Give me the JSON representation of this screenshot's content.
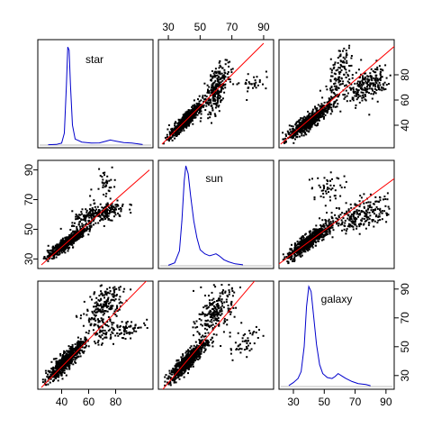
{
  "chart_data": {
    "type": "scatter",
    "subtype": "scatterplot-matrix",
    "variables": [
      "star",
      "sun",
      "galaxy"
    ],
    "diagonal": "density curve",
    "density_color": "#0000cc",
    "fit_line_color": "#ff0000",
    "point_color": "#000000",
    "axes": {
      "star": {
        "ticks": [
          40,
          60,
          80
        ],
        "range": [
          25,
          105
        ]
      },
      "sun": {
        "ticks": [
          30,
          50,
          70,
          90
        ],
        "range": [
          26,
          94
        ]
      },
      "galaxy": {
        "ticks": [
          30,
          50,
          70,
          90
        ],
        "range": [
          23,
          93
        ]
      }
    },
    "density": {
      "star": [
        [
          30,
          0.004
        ],
        [
          36,
          0.006
        ],
        [
          40,
          0.02
        ],
        [
          42,
          0.12
        ],
        [
          43.5,
          0.6
        ],
        [
          44.5,
          0.98
        ],
        [
          45.5,
          0.95
        ],
        [
          46.5,
          0.6
        ],
        [
          48,
          0.2
        ],
        [
          50,
          0.06
        ],
        [
          55,
          0.03
        ],
        [
          62,
          0.02
        ],
        [
          68,
          0.022
        ],
        [
          73,
          0.04
        ],
        [
          76,
          0.05
        ],
        [
          80,
          0.04
        ],
        [
          86,
          0.024
        ],
        [
          92,
          0.02
        ],
        [
          97,
          0.012
        ],
        [
          100,
          0.005
        ]
      ],
      "sun": [
        [
          30,
          0.005
        ],
        [
          34,
          0.03
        ],
        [
          37,
          0.15
        ],
        [
          38.5,
          0.45
        ],
        [
          40,
          0.85
        ],
        [
          41,
          1.0
        ],
        [
          42.5,
          0.92
        ],
        [
          44,
          0.7
        ],
        [
          46,
          0.45
        ],
        [
          48,
          0.28
        ],
        [
          50,
          0.16
        ],
        [
          53,
          0.12
        ],
        [
          56,
          0.1
        ],
        [
          58,
          0.11
        ],
        [
          60,
          0.12
        ],
        [
          62,
          0.1
        ],
        [
          65,
          0.06
        ],
        [
          68,
          0.04
        ],
        [
          72,
          0.02
        ],
        [
          77,
          0.01
        ]
      ],
      "galaxy": [
        [
          27,
          0.01
        ],
        [
          30,
          0.04
        ],
        [
          33,
          0.08
        ],
        [
          35,
          0.15
        ],
        [
          37,
          0.4
        ],
        [
          38.5,
          0.8
        ],
        [
          40,
          1.0
        ],
        [
          41.5,
          0.95
        ],
        [
          43,
          0.72
        ],
        [
          45,
          0.42
        ],
        [
          47,
          0.22
        ],
        [
          49,
          0.13
        ],
        [
          52,
          0.09
        ],
        [
          55,
          0.08
        ],
        [
          57,
          0.1
        ],
        [
          59,
          0.13
        ],
        [
          61,
          0.11
        ],
        [
          64,
          0.08
        ],
        [
          68,
          0.05
        ],
        [
          72,
          0.03
        ],
        [
          77,
          0.02
        ],
        [
          80,
          0.008
        ]
      ]
    },
    "scatter": {
      "star_vs_sun": {
        "clusters": [
          {
            "cx": 44,
            "cy": 41,
            "sx": 7,
            "sy": 5,
            "rho": 0.92,
            "n": 700
          },
          {
            "cx": 68,
            "cy": 60,
            "sx": 10,
            "sy": 4,
            "rho": 0.6,
            "n": 260
          },
          {
            "cx": 72,
            "cy": 82,
            "sx": 4,
            "sy": 5,
            "rho": 0.3,
            "n": 35
          }
        ],
        "fit": {
          "intercept": 6,
          "slope": 0.8
        }
      },
      "star_vs_galaxy": {
        "clusters": [
          {
            "cx": 43,
            "cy": 40,
            "sx": 7,
            "sy": 7,
            "rho": 0.9,
            "n": 650
          },
          {
            "cx": 72,
            "cy": 78,
            "sx": 7,
            "sy": 9,
            "rho": 0.5,
            "n": 240
          },
          {
            "cx": 80,
            "cy": 60,
            "sx": 12,
            "sy": 4,
            "rho": 0.5,
            "n": 120
          }
        ],
        "fit": {
          "intercept": -2,
          "slope": 0.95
        }
      },
      "sun_vs_galaxy": {
        "clusters": [
          {
            "cx": 42,
            "cy": 40,
            "sx": 6,
            "sy": 7,
            "rho": 0.9,
            "n": 650
          },
          {
            "cx": 60,
            "cy": 75,
            "sx": 6,
            "sy": 10,
            "rho": 0.55,
            "n": 240
          },
          {
            "cx": 78,
            "cy": 52,
            "sx": 5,
            "sy": 6,
            "rho": 0.2,
            "n": 50
          }
        ],
        "fit": {
          "intercept": -14,
          "slope": 1.3
        }
      }
    },
    "labels": {
      "star": "star",
      "sun": "sun",
      "galaxy": "galaxy"
    },
    "legend": "none",
    "grid": false
  }
}
